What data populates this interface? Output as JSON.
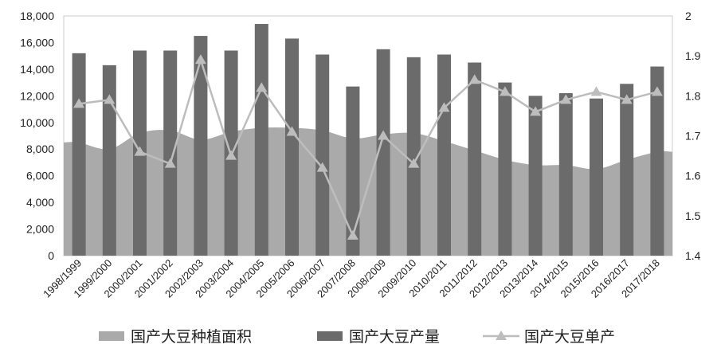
{
  "chart_data": {
    "type": "bar",
    "categories": [
      "1998/1999",
      "1999/2000",
      "2000/2001",
      "2001/2002",
      "2002/2003",
      "2003/2004",
      "2004/2005",
      "2005/2006",
      "2006/2007",
      "2007/2008",
      "2008/2009",
      "2009/2010",
      "2010/2011",
      "2011/2012",
      "2012/2013",
      "2013/2014",
      "2014/2015",
      "2015/2016",
      "2016/2017",
      "2017/2018"
    ],
    "series": [
      {
        "name": "国产大豆种植面积",
        "kind": "area",
        "axis": "left",
        "color": "#aaaaaa",
        "values": [
          8500,
          8000,
          9200,
          9400,
          8700,
          9300,
          9600,
          9600,
          9400,
          8800,
          9100,
          9200,
          8600,
          7900,
          7200,
          6800,
          6800,
          6500,
          7200,
          7800
        ]
      },
      {
        "name": "国产大豆产量",
        "kind": "bar",
        "axis": "left",
        "color": "#6b6b6b",
        "values": [
          15200,
          14300,
          15400,
          15400,
          16500,
          15400,
          17400,
          16300,
          15100,
          12700,
          15500,
          14900,
          15100,
          14500,
          13000,
          12000,
          12200,
          11800,
          12900,
          14200
        ]
      },
      {
        "name": "国产大豆单产",
        "kind": "line",
        "axis": "right",
        "color": "#bdbdbd",
        "values": [
          1.78,
          1.79,
          1.66,
          1.63,
          1.89,
          1.65,
          1.82,
          1.71,
          1.62,
          1.45,
          1.7,
          1.63,
          1.77,
          1.84,
          1.81,
          1.76,
          1.79,
          1.81,
          1.79,
          1.81
        ]
      }
    ],
    "y_left": {
      "min": 0,
      "max": 18000,
      "ticks": [
        0,
        2000,
        4000,
        6000,
        8000,
        10000,
        12000,
        14000,
        16000,
        18000
      ],
      "tick_labels": [
        "0",
        "2,000",
        "4,000",
        "6,000",
        "8,000",
        "10,000",
        "12,000",
        "14,000",
        "16,000",
        "18,000"
      ]
    },
    "y_right": {
      "min": 1.4,
      "max": 2.0,
      "ticks": [
        1.4,
        1.5,
        1.6,
        1.7,
        1.8,
        1.9,
        2.0
      ],
      "tick_labels": [
        "1.4",
        "1.5",
        "1.6",
        "1.7",
        "1.8",
        "1.9",
        "2"
      ]
    },
    "grid": false,
    "legend_position": "bottom"
  }
}
